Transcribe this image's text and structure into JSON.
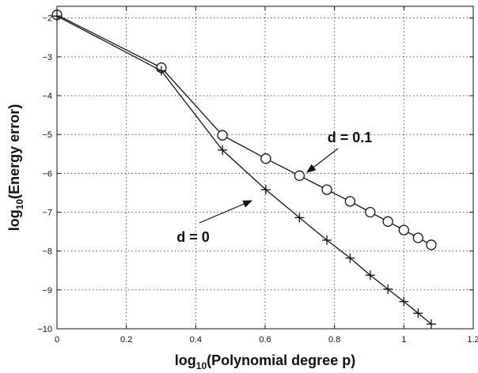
{
  "chart_data": {
    "type": "line",
    "xlabel": {
      "prefix": "log",
      "sub": "10",
      "rest": "(Polynomial degree p)"
    },
    "ylabel": {
      "prefix": "log",
      "sub": "10",
      "rest": "(Energy error)"
    },
    "xlim": [
      0,
      1.2
    ],
    "ylim": [
      -10,
      -1.7
    ],
    "x_ticks": [
      0,
      0.2,
      0.4,
      0.6,
      0.8,
      1,
      1.2
    ],
    "x_tick_labels": [
      "0",
      "0.2",
      "0.4",
      "0.6",
      "0.8",
      "1",
      "1.2"
    ],
    "y_ticks": [
      -2,
      -3,
      -4,
      -5,
      -6,
      -7,
      -8,
      -9,
      -10
    ],
    "y_tick_labels": [
      "−2",
      "−3",
      "−4",
      "−5",
      "−6",
      "−7",
      "−8",
      "−9",
      "−10"
    ],
    "grid": true,
    "series": [
      {
        "name": "d = 0.1",
        "marker": "circle",
        "x": [
          0.0,
          0.301,
          0.477,
          0.602,
          0.699,
          0.778,
          0.845,
          0.903,
          0.954,
          1.0,
          1.041,
          1.079
        ],
        "y": [
          -1.92,
          -3.28,
          -5.02,
          -5.62,
          -6.06,
          -6.42,
          -6.72,
          -7.0,
          -7.24,
          -7.46,
          -7.66,
          -7.84
        ]
      },
      {
        "name": "d = 0",
        "marker": "plus",
        "x": [
          0.0,
          0.301,
          0.477,
          0.602,
          0.699,
          0.778,
          0.845,
          0.903,
          0.954,
          1.0,
          1.041,
          1.079
        ],
        "y": [
          -1.95,
          -3.36,
          -5.4,
          -6.42,
          -7.14,
          -7.72,
          -8.18,
          -8.62,
          -8.98,
          -9.3,
          -9.6,
          -9.88
        ]
      }
    ],
    "annotations": [
      {
        "text": "d = 0.1",
        "series": 0,
        "point_index": 4
      },
      {
        "text": "d = 0",
        "series": 1,
        "point_index": 2
      }
    ]
  }
}
